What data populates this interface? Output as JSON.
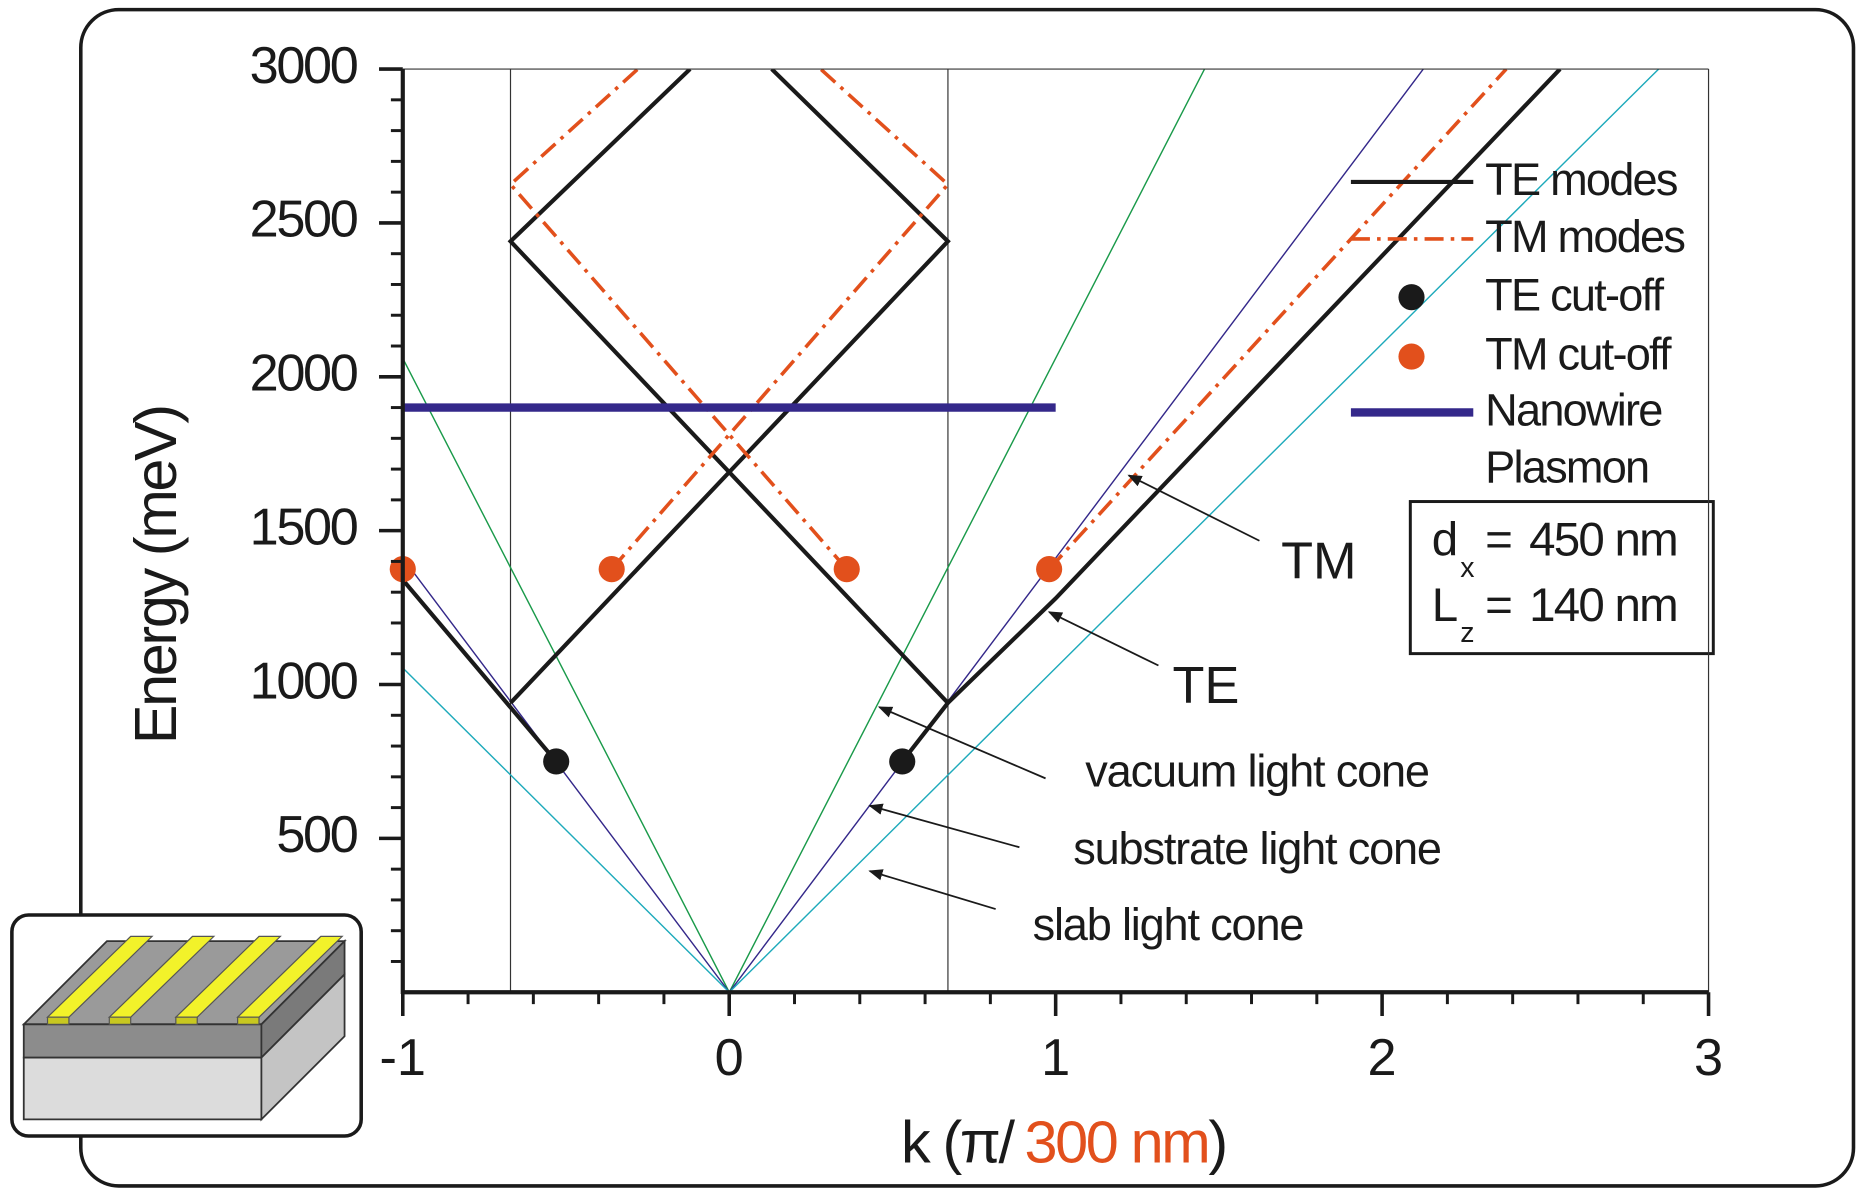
{
  "chart_data": {
    "type": "line",
    "y_label": "Energy (meV)",
    "x_label_parts": [
      "k (π/",
      "300 nm",
      ")"
    ],
    "x_label_colors": [
      "#1a1a1a",
      "#e2501c",
      "#1a1a1a"
    ],
    "xlim": [
      -1,
      3
    ],
    "xticks": [
      -1,
      0,
      1,
      2,
      3
    ],
    "ylim": [
      0,
      3000
    ],
    "yticks": [
      500,
      1000,
      1500,
      2000,
      2500,
      3000
    ],
    "zone_boundaries": [
      -0.67,
      0.67
    ],
    "legend": "upper right",
    "series": [
      {
        "name": "TE modes",
        "color": "#1a1a1a",
        "style": "solid",
        "x": [
          -1,
          -0.53,
          null,
          -0.67,
          0.67,
          0.13,
          null,
          0.67,
          -0.67,
          -0.12,
          null,
          0.53,
          0.67,
          1,
          2.545
        ],
        "values": [
          1340,
          750,
          null,
          940,
          2440,
          3000,
          null,
          940,
          2440,
          3000,
          null,
          750,
          940,
          1280,
          3000
        ]
      },
      {
        "name": "TM modes",
        "color": "#e2501c",
        "style": "dashdot",
        "x": [
          0.98,
          2.38,
          null,
          -0.36,
          0.67,
          0.28,
          null,
          0.36,
          -0.67,
          -0.28
        ],
        "values": [
          1375,
          3000,
          null,
          1375,
          2625,
          3000,
          null,
          1375,
          2625,
          3000
        ]
      },
      {
        "name": "TE cut-off",
        "color": "#1a1a1a",
        "style": "dots",
        "x": [
          -0.53,
          0.53
        ],
        "values": [
          750,
          750
        ]
      },
      {
        "name": "TM cut-off",
        "color": "#e2501c",
        "style": "dots",
        "x": [
          -1,
          -0.36,
          0.36,
          0.98
        ],
        "values": [
          1375,
          1375,
          1375,
          1375
        ]
      },
      {
        "name": "Nanowire Plasmon",
        "color": "#34288a",
        "style": "thick",
        "x": [
          -1,
          1
        ],
        "values": [
          1900,
          1900
        ]
      }
    ],
    "light_cones": [
      {
        "name": "vacuum light cone",
        "color": "#1a9a4a",
        "x": [
          -1,
          0,
          1.456
        ],
        "values": [
          2060,
          0,
          3000
        ]
      },
      {
        "name": "substrate light cone",
        "color": "#34288a",
        "x": [
          -1,
          0,
          2.126
        ],
        "values": [
          1411,
          0,
          3000
        ]
      },
      {
        "name": "slab light cone",
        "color": "#1eaabb",
        "x": [
          -1,
          0,
          2.847
        ],
        "values": [
          1054,
          0,
          3000
        ]
      }
    ],
    "annotations": [
      {
        "text": "TM",
        "color": "#e2501c"
      },
      {
        "text": "TE",
        "color": "#1a1a1a"
      }
    ],
    "parameters": [
      {
        "symbol": "d",
        "sub": "x",
        "equals": "=",
        "value": "450 nm",
        "value_color": "#e2501c"
      },
      {
        "symbol": "L",
        "sub": "z",
        "equals": "=",
        "value": "140 nm",
        "value_color": "#1a1a1a"
      }
    ]
  }
}
